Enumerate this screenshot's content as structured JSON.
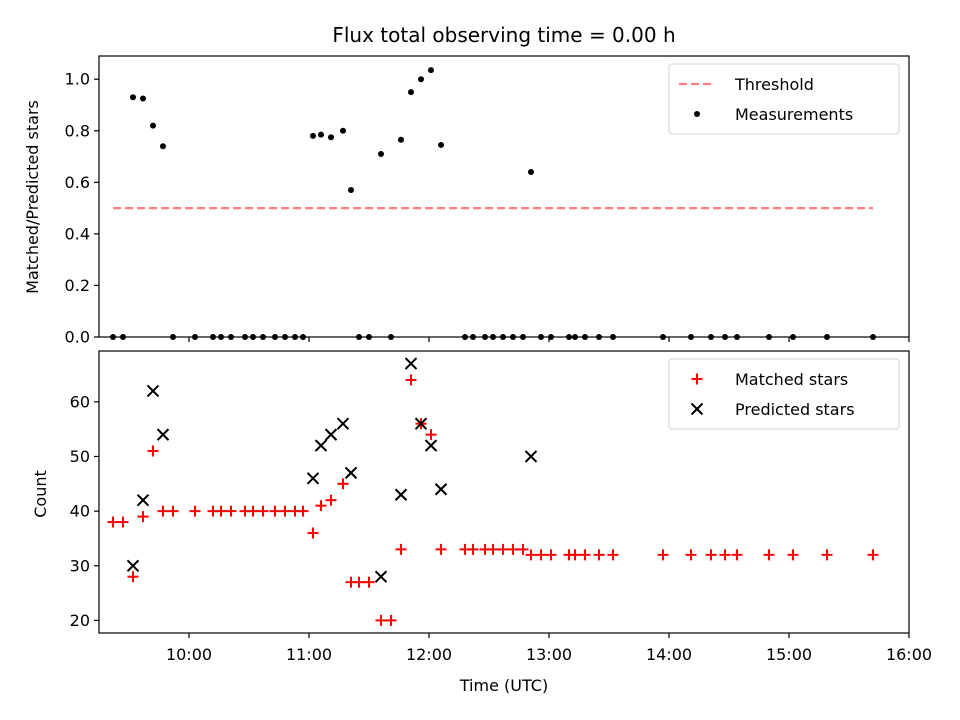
{
  "chart_data": [
    {
      "type": "scatter",
      "title": "Flux total observing time = 0.00 h",
      "xlabel": "",
      "ylabel": "Matched/Predicted stars",
      "xlim": [
        "09:15",
        "16:00"
      ],
      "ylim": [
        0,
        1.09
      ],
      "yticks": [
        "0.0",
        "0.2",
        "0.4",
        "0.6",
        "0.8",
        "1.0"
      ],
      "ytick_values": [
        0,
        0.2,
        0.4,
        0.6,
        0.8,
        1.0
      ],
      "grid": false,
      "legend_position": "top-right",
      "series": [
        {
          "name": "Threshold",
          "style": "dashed-line",
          "color": "#ff7f7f",
          "points": [
            [
              "09:22",
              0.5
            ],
            [
              "15:42",
              0.5
            ]
          ]
        },
        {
          "name": "Measurements",
          "style": "dot",
          "color": "#000000",
          "points": [
            [
              "09:22",
              0.0
            ],
            [
              "09:27",
              0.0
            ],
            [
              "09:32",
              0.93
            ],
            [
              "09:37",
              0.925
            ],
            [
              "09:42",
              0.82
            ],
            [
              "09:47",
              0.74
            ],
            [
              "09:52",
              0.0
            ],
            [
              "10:03",
              0.0
            ],
            [
              "10:12",
              0.0
            ],
            [
              "10:16",
              0.0
            ],
            [
              "10:21",
              0.0
            ],
            [
              "10:28",
              0.0
            ],
            [
              "10:32",
              0.0
            ],
            [
              "10:37",
              0.0
            ],
            [
              "10:43",
              0.0
            ],
            [
              "10:48",
              0.0
            ],
            [
              "10:53",
              0.0
            ],
            [
              "10:57",
              0.0
            ],
            [
              "11:02",
              0.78
            ],
            [
              "11:06",
              0.785
            ],
            [
              "11:11",
              0.775
            ],
            [
              "11:17",
              0.8
            ],
            [
              "11:21",
              0.57
            ],
            [
              "11:25",
              0.0
            ],
            [
              "11:30",
              0.0
            ],
            [
              "11:36",
              0.71
            ],
            [
              "11:41",
              0.0
            ],
            [
              "11:46",
              0.765
            ],
            [
              "11:51",
              0.95
            ],
            [
              "11:56",
              1.0
            ],
            [
              "12:01",
              1.035
            ],
            [
              "12:06",
              0.745
            ],
            [
              "12:18",
              0.0
            ],
            [
              "12:22",
              0.0
            ],
            [
              "12:28",
              0.0
            ],
            [
              "12:32",
              0.0
            ],
            [
              "12:37",
              0.0
            ],
            [
              "12:42",
              0.0
            ],
            [
              "12:47",
              0.0
            ],
            [
              "12:51",
              0.64
            ],
            [
              "12:56",
              0.0
            ],
            [
              "13:01",
              0.0
            ],
            [
              "13:10",
              0.0
            ],
            [
              "13:13",
              0.0
            ],
            [
              "13:18",
              0.0
            ],
            [
              "13:25",
              0.0
            ],
            [
              "13:32",
              0.0
            ],
            [
              "13:57",
              0.0
            ],
            [
              "14:11",
              0.0
            ],
            [
              "14:21",
              0.0
            ],
            [
              "14:28",
              0.0
            ],
            [
              "14:34",
              0.0
            ],
            [
              "14:50",
              0.0
            ],
            [
              "15:02",
              0.0
            ],
            [
              "15:19",
              0.0
            ],
            [
              "15:42",
              0.0
            ]
          ]
        }
      ]
    },
    {
      "type": "scatter",
      "title": "",
      "xlabel": "Time (UTC)",
      "ylabel": "Count",
      "xlim": [
        "09:15",
        "16:00"
      ],
      "ylim": [
        17.7,
        69.3
      ],
      "yticks": [
        "20",
        "30",
        "40",
        "50",
        "60"
      ],
      "ytick_values": [
        20,
        30,
        40,
        50,
        60
      ],
      "xticks": [
        "10:00",
        "11:00",
        "12:00",
        "13:00",
        "14:00",
        "15:00",
        "16:00"
      ],
      "grid": false,
      "legend_position": "top-right",
      "series": [
        {
          "name": "Matched stars",
          "marker": "+",
          "color": "#ff0000",
          "points": [
            [
              "09:22",
              38
            ],
            [
              "09:27",
              38
            ],
            [
              "09:32",
              28
            ],
            [
              "09:37",
              39
            ],
            [
              "09:42",
              51
            ],
            [
              "09:47",
              40
            ],
            [
              "09:52",
              40
            ],
            [
              "10:03",
              40
            ],
            [
              "10:12",
              40
            ],
            [
              "10:16",
              40
            ],
            [
              "10:21",
              40
            ],
            [
              "10:28",
              40
            ],
            [
              "10:32",
              40
            ],
            [
              "10:37",
              40
            ],
            [
              "10:43",
              40
            ],
            [
              "10:48",
              40
            ],
            [
              "10:53",
              40
            ],
            [
              "10:57",
              40
            ],
            [
              "11:02",
              36
            ],
            [
              "11:06",
              41
            ],
            [
              "11:11",
              42
            ],
            [
              "11:17",
              45
            ],
            [
              "11:21",
              27
            ],
            [
              "11:25",
              27
            ],
            [
              "11:30",
              27
            ],
            [
              "11:36",
              20
            ],
            [
              "11:41",
              20
            ],
            [
              "11:46",
              33
            ],
            [
              "11:51",
              64
            ],
            [
              "11:56",
              56
            ],
            [
              "12:01",
              54
            ],
            [
              "12:06",
              33
            ],
            [
              "12:18",
              33
            ],
            [
              "12:22",
              33
            ],
            [
              "12:28",
              33
            ],
            [
              "12:32",
              33
            ],
            [
              "12:37",
              33
            ],
            [
              "12:42",
              33
            ],
            [
              "12:47",
              33
            ],
            [
              "12:51",
              32
            ],
            [
              "12:56",
              32
            ],
            [
              "13:01",
              32
            ],
            [
              "13:10",
              32
            ],
            [
              "13:13",
              32
            ],
            [
              "13:18",
              32
            ],
            [
              "13:25",
              32
            ],
            [
              "13:32",
              32
            ],
            [
              "13:57",
              32
            ],
            [
              "14:11",
              32
            ],
            [
              "14:21",
              32
            ],
            [
              "14:28",
              32
            ],
            [
              "14:34",
              32
            ],
            [
              "14:50",
              32
            ],
            [
              "15:02",
              32
            ],
            [
              "15:19",
              32
            ],
            [
              "15:42",
              32
            ]
          ]
        },
        {
          "name": "Predicted stars",
          "marker": "x",
          "color": "#000000",
          "points": [
            [
              "09:32",
              30
            ],
            [
              "09:37",
              42
            ],
            [
              "09:42",
              62
            ],
            [
              "09:47",
              54
            ],
            [
              "11:02",
              46
            ],
            [
              "11:06",
              52
            ],
            [
              "11:11",
              54
            ],
            [
              "11:17",
              56
            ],
            [
              "11:21",
              47
            ],
            [
              "11:36",
              28
            ],
            [
              "11:46",
              43
            ],
            [
              "11:51",
              67
            ],
            [
              "11:56",
              56
            ],
            [
              "12:01",
              52
            ],
            [
              "12:06",
              44
            ],
            [
              "12:51",
              50
            ]
          ]
        }
      ]
    }
  ]
}
